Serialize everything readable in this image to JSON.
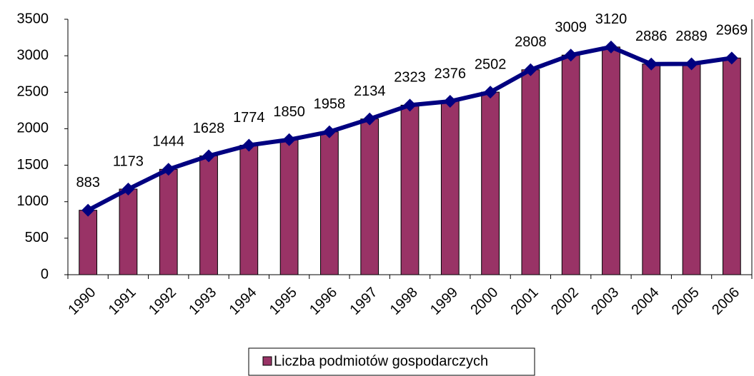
{
  "chart_data": {
    "type": "bar",
    "categories": [
      "1990",
      "1991",
      "1992",
      "1993",
      "1994",
      "1995",
      "1996",
      "1997",
      "1998",
      "1999",
      "2000",
      "2001",
      "2002",
      "2003",
      "2004",
      "2005",
      "2006"
    ],
    "series": [
      {
        "name": "Liczba podmiotów gospodarczych",
        "color": "#993366",
        "values": [
          883,
          1173,
          1444,
          1628,
          1774,
          1850,
          1958,
          2134,
          2323,
          2376,
          2502,
          2808,
          3009,
          3120,
          2886,
          2889,
          2969
        ]
      }
    ],
    "line_overlay": true,
    "line_color": "#000080",
    "ylim": [
      0,
      3500
    ],
    "yticks": [
      0,
      500,
      1000,
      1500,
      2000,
      2500,
      3000,
      3500
    ],
    "grid": false,
    "legend": "bottom"
  }
}
